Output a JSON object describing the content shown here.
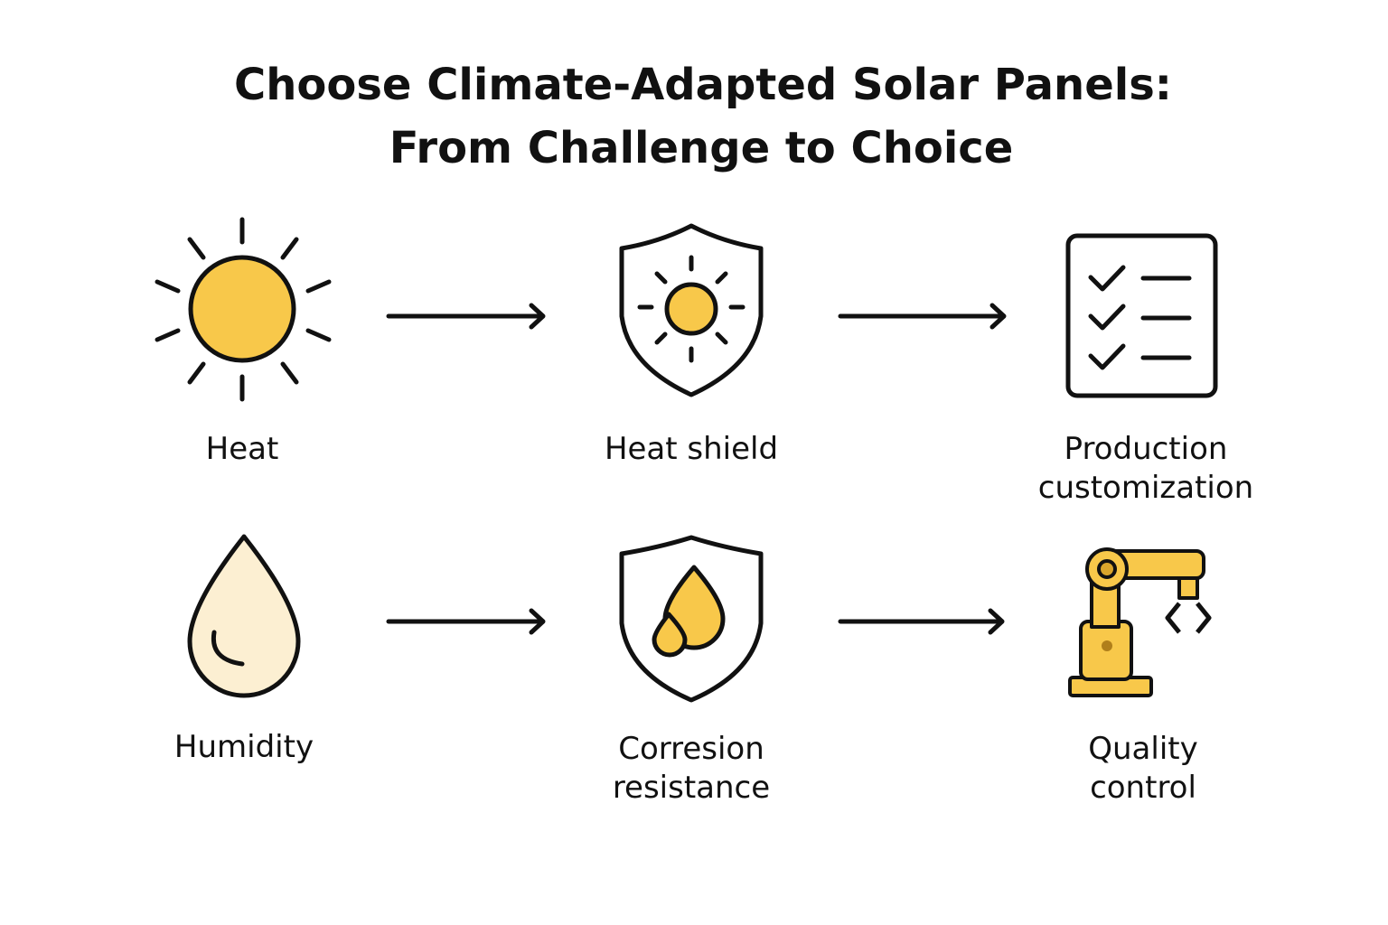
{
  "title": {
    "lines": [
      "Choose Climate-Adapted Solar Panels:",
      "From Challenge to Choice"
    ]
  },
  "nodes": [
    {
      "label": [
        "Heat"
      ]
    },
    {
      "label": [
        "Heat shield"
      ]
    },
    {
      "label": [
        "Production",
        "customization"
      ]
    },
    {
      "label": [
        "Humidity"
      ]
    },
    {
      "label": [
        "Corresion",
        "resistance"
      ]
    },
    {
      "label": [
        "Quality",
        "control"
      ]
    }
  ]
}
